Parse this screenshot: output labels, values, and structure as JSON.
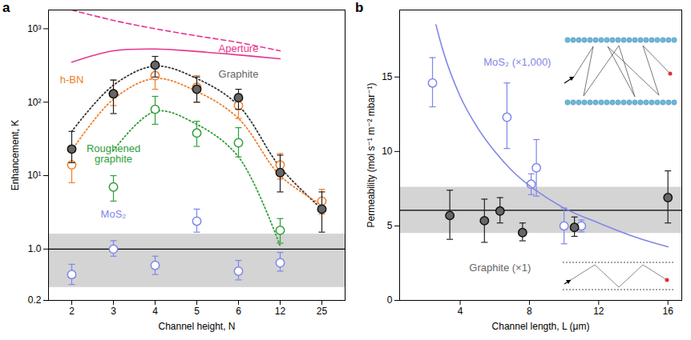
{
  "chart_data": [
    {
      "type": "scatter",
      "title": "a",
      "x_label": "Channel height, N",
      "y_label": "Enhancement, K",
      "categories": [
        2,
        3,
        4,
        5,
        6,
        12,
        25
      ],
      "log": "y",
      "grid": false,
      "ylim": [
        0.2,
        1800
      ],
      "yticks": [
        0.2,
        {
          "value": 1,
          "label": "1.0"
        },
        {
          "value": 10,
          "label": "10¹"
        },
        {
          "value": 100,
          "label": "10²"
        },
        {
          "value": 1000,
          "label": "10³"
        }
      ],
      "band": [
        0.3,
        1.6
      ],
      "reference": 1,
      "series": [
        {
          "name": "Aperture",
          "type": "line",
          "line_style": "solid",
          "color": "#e8338f",
          "values": [
            350,
            500,
            530,
            490,
            440,
            390,
            null
          ],
          "name_at": [
            6,
            530
          ]
        },
        {
          "type": "line",
          "line_style": "dashed",
          "color": "#e8338f",
          "values": [
            1800,
            1300,
            1000,
            800,
            650,
            500,
            null
          ]
        },
        {
          "type": "line",
          "line_style": "dotted",
          "color": "#333333",
          "values": [
            40,
            170,
            310,
            210,
            90,
            13,
            3.5
          ]
        },
        {
          "type": "line",
          "line_style": "dotted",
          "color": "#f07d28",
          "values": [
            22,
            110,
            210,
            140,
            60,
            10,
            4
          ]
        },
        {
          "type": "line",
          "line_style": "dotted",
          "color": "#2e9e3a",
          "values": [
            null,
            22,
            75,
            50,
            18,
            1.1,
            null
          ]
        },
        {
          "name": "h-BN",
          "type": "scatter",
          "marker": "open",
          "color": "#f07d28",
          "values": [
            14,
            130,
            230,
            160,
            90,
            14,
            4.5
          ],
          "lower": [
            8,
            90,
            150,
            100,
            60,
            9,
            3
          ],
          "upper": [
            22,
            200,
            330,
            230,
            130,
            20,
            6.5
          ],
          "name_at": [
            2,
            200
          ]
        },
        {
          "name": "Graphite",
          "type": "scatter",
          "marker": "filled",
          "color": "#666666",
          "values": [
            23,
            130,
            320,
            150,
            115,
            11,
            3.5
          ],
          "lower": [
            15,
            70,
            220,
            100,
            80,
            6,
            1.7
          ],
          "upper": [
            40,
            200,
            420,
            220,
            150,
            19,
            6
          ],
          "name_at": [
            6,
            240
          ]
        },
        {
          "name": "Roughened\ngraphite",
          "type": "scatter",
          "marker": "open",
          "color": "#2e9e3a",
          "values": [
            null,
            7,
            80,
            38,
            28,
            1.8,
            null
          ],
          "lower": [
            null,
            4.5,
            50,
            25,
            18,
            1.2,
            null
          ],
          "upper": [
            null,
            10,
            120,
            55,
            45,
            2.6,
            null
          ],
          "name_at": [
            3,
            20
          ]
        },
        {
          "name": "MoS₂",
          "type": "scatter",
          "marker": "open",
          "color": "#7f86e8",
          "values": [
            0.45,
            1.0,
            0.6,
            2.4,
            0.5,
            0.65,
            null
          ],
          "lower": [
            0.33,
            0.8,
            0.45,
            1.7,
            0.38,
            0.5,
            null
          ],
          "upper": [
            0.62,
            1.3,
            0.8,
            3.5,
            0.7,
            0.9,
            null
          ],
          "name_at": [
            3,
            3
          ]
        }
      ]
    },
    {
      "type": "scatter",
      "title": "b",
      "x_label": "Channel length, L (μm)",
      "y_label": "Permeability (mol s⁻¹ m⁻² mbar⁻¹)",
      "grid": false,
      "xlim": [
        0.5,
        16.8
      ],
      "xticks": [
        4,
        8,
        12,
        16
      ],
      "ylim": [
        0,
        19.5
      ],
      "yticks": [
        0,
        5,
        10,
        15
      ],
      "band": [
        4.5,
        7.6
      ],
      "reference": 6.05,
      "series": [
        {
          "name": "MoS₂ (×1,000)",
          "type": "scatter",
          "marker": "open",
          "color": "#7f86e8",
          "x": [
            2.4,
            6.7,
            8.1,
            8.4,
            10.0,
            11.0
          ],
          "values": [
            14.6,
            12.3,
            7.8,
            8.9,
            5.0,
            5.0
          ],
          "lower": [
            13.0,
            10.2,
            7.1,
            7.0,
            3.8,
            4.6
          ],
          "upper": [
            16.3,
            14.6,
            8.5,
            10.8,
            6.2,
            5.4
          ],
          "name_at": [
            7.3,
            16
          ]
        },
        {
          "type": "line",
          "line_style": "solid",
          "color": "#7f86e8",
          "x": [
            2.6,
            3,
            4,
            5,
            6,
            7,
            8,
            9,
            10,
            12,
            14,
            16
          ],
          "values": [
            18.5,
            16.8,
            13.7,
            11.6,
            10.0,
            8.7,
            7.7,
            6.9,
            6.2,
            5.2,
            4.3,
            3.6
          ]
        },
        {
          "name": "Graphite (×1)",
          "type": "scatter",
          "marker": "filled",
          "color": "#666666",
          "x": [
            3.4,
            5.4,
            6.3,
            7.6,
            10.6,
            16.0
          ],
          "values": [
            5.7,
            5.35,
            6.0,
            4.55,
            4.9,
            6.9
          ],
          "lower": [
            4.1,
            3.9,
            5.2,
            4.0,
            4.3,
            5.2
          ],
          "upper": [
            7.4,
            6.8,
            6.9,
            5.2,
            5.6,
            8.7
          ],
          "name_at": [
            6.3,
            2.2
          ]
        }
      ]
    }
  ]
}
